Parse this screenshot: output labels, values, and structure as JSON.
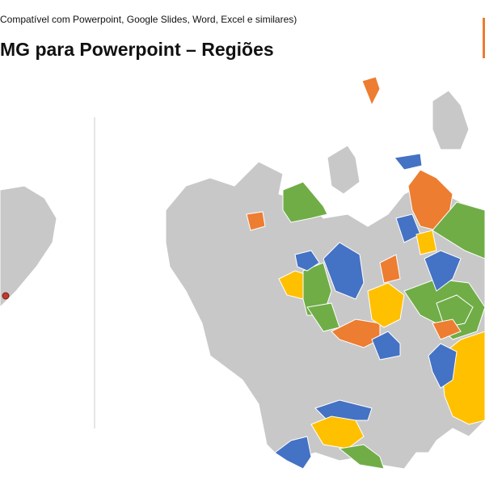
{
  "header": {
    "subtitle": "Compatível com Powerpoint, Google Slides, Word, Excel e similares)",
    "title": "MG para Powerpoint – Regiões"
  }
}
